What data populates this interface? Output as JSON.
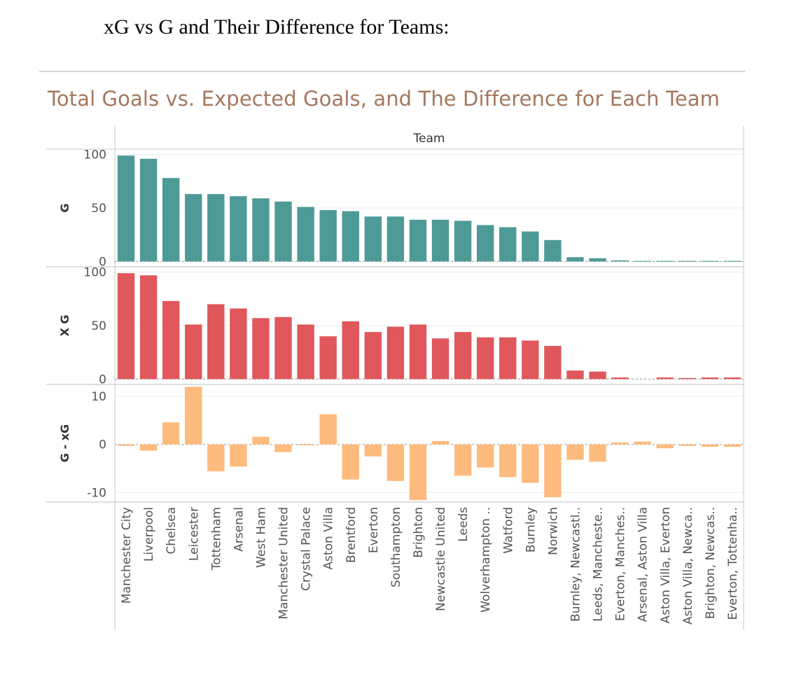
{
  "document": {
    "heading": "xG vs G and Their Difference for Teams:"
  },
  "chart_data": {
    "type": "bar",
    "title": "Total Goals vs. Expected Goals, and The Difference for Each Team",
    "column_header": "Team",
    "categories": [
      "Manchester City",
      "Liverpool",
      "Chelsea",
      "Leicester",
      "Tottenham",
      "Arsenal",
      "West Ham",
      "Manchester United",
      "Crystal Palace",
      "Aston Villa",
      "Brentford",
      "Everton",
      "Southampton",
      "Brighton",
      "Newcastle United",
      "Leeds",
      "Wolverhampton ..",
      "Watford",
      "Burnley",
      "Norwich",
      "Burnley, Newcastl..",
      "Leeds, Mancheste..",
      "Everton, Manches..",
      "Arsenal, Aston Villa",
      "Aston Villa, Everton",
      "Aston Villa, Newca..",
      "Brighton, Newcas..",
      "Everton, Tottenha.."
    ],
    "panels": [
      {
        "ylabel": "G",
        "color": "#4e9a96",
        "ylim": [
          -5,
          105
        ],
        "ticks": [
          0,
          50,
          100
        ],
        "values": [
          99,
          96,
          78,
          63,
          63,
          61,
          59,
          56,
          51,
          48,
          47,
          42,
          42,
          39,
          39,
          38,
          34,
          32,
          28,
          20,
          4,
          3,
          1,
          0.5,
          0.5,
          0.5,
          0.5,
          0.5
        ]
      },
      {
        "ylabel": "X G",
        "color": "#e0575c",
        "ylim": [
          -5,
          105
        ],
        "ticks": [
          0,
          50,
          100
        ],
        "values": [
          99,
          97,
          73,
          51,
          70,
          66,
          57,
          58,
          51,
          40,
          54,
          44,
          49,
          51,
          38,
          44,
          39,
          39,
          36,
          31,
          8,
          7,
          1.5,
          0,
          1.5,
          1,
          1.5,
          1.5
        ]
      },
      {
        "ylabel": "G - xG",
        "color": "#fdbb7d",
        "ylim": [
          -12,
          12.5
        ],
        "ticks": [
          -10,
          0,
          10
        ],
        "values": [
          -0.3,
          -1.3,
          4.6,
          12.0,
          -5.6,
          -4.6,
          1.6,
          -1.6,
          -0.2,
          6.3,
          -7.3,
          -2.5,
          -7.6,
          -11.6,
          0.7,
          -6.5,
          -4.8,
          -6.8,
          -8.0,
          -11.0,
          -3.2,
          -3.6,
          0.4,
          0.6,
          -0.8,
          -0.3,
          -0.5,
          -0.5
        ]
      }
    ],
    "grid": true,
    "legend": "none"
  }
}
